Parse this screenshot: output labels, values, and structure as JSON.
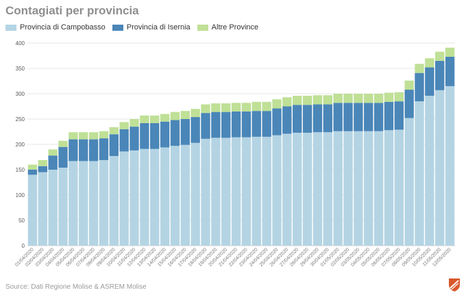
{
  "title": "Contagiati per provincia",
  "source": "Source: Dati Regione Molise & ASREM Molise",
  "logo_icon": "molise-shield-logo",
  "colors": {
    "campobasso": "#b4d4e4",
    "isernia": "#4a86b8",
    "altre": "#bfe096",
    "grid": "#e6e6e6",
    "axis": "#cccccc"
  },
  "chart_data": {
    "type": "bar",
    "stacked": true,
    "ylim": [
      0,
      400
    ],
    "yticks": [
      0,
      50,
      100,
      150,
      200,
      250,
      300,
      350,
      400
    ],
    "grid": true,
    "legend_position": "top-left",
    "categories": [
      "01/04/2020",
      "02/04/2020",
      "03/04/2020",
      "04/04/2020",
      "05/04/2020",
      "06/04/2020",
      "07/04/2020",
      "08/04/2020",
      "09/04/2020",
      "10/04/2020",
      "11/04/2020",
      "12/04/2020",
      "13/04/2020",
      "14/04/2020",
      "15/04/2020",
      "16/04/2020",
      "17/04/2020",
      "18/04/2020",
      "19/04/2020",
      "20/04/2020",
      "21/04/2020",
      "22/04/2020",
      "23/04/2020",
      "24/04/2020",
      "25/04/2020",
      "26/04/2020",
      "27/04/2020",
      "28/04/2020",
      "29/04/2020",
      "30/04/2020",
      "01/05/2020",
      "02/05/2020",
      "03/05/2020",
      "04/05/2020",
      "05/05/2020",
      "06/05/2020",
      "07/05/2020",
      "08/05/2020",
      "09/05/2020",
      "10/05/2020",
      "11/05/2020",
      "12/05/2020"
    ],
    "xtick_labels": [
      "01/04/2020",
      "02/04/2020",
      "03/04/2020",
      "04/04/2020",
      "05/04/2020",
      "06/04/2020",
      "07/04/2020",
      "08/04/2020",
      "09/04/2020",
      "10/04/2020",
      "11/04/2020",
      "12/04/2020",
      "13/04/2020",
      "14/04/2020",
      "15/04/2020",
      "16/04/2020",
      "17/04/2020",
      "18/04/2020",
      "19/04/2020",
      "20/04/2020",
      "21/04/2020",
      "22/04/2020",
      "23/04/2020",
      "24/04/2020",
      "25/04/2020",
      "26/04/2020",
      "27/04/2020",
      "28/04/2020",
      "29/04/2020",
      "30/04/2020",
      "01/05/2020",
      "02/05/2020",
      "03/05/2020",
      "04/05/2020",
      "05/05/2020",
      "06/05/2020",
      "07/05/2020",
      "08/05/2020",
      "09/05/2020",
      "10/05/2020",
      "11/05/2020",
      "12/05/2020"
    ],
    "series": [
      {
        "name": "Provincia di Campobasso",
        "color": "#b4d4e4",
        "values": [
          140,
          145,
          150,
          154,
          167,
          167,
          167,
          169,
          177,
          186,
          188,
          191,
          191,
          194,
          197,
          199,
          203,
          211,
          213,
          213,
          214,
          214,
          215,
          215,
          218,
          221,
          223,
          223,
          224,
          224,
          226,
          226,
          226,
          226,
          226,
          228,
          229,
          252,
          285,
          296,
          307,
          315
        ]
      },
      {
        "name": "Provincia di Isernia",
        "color": "#4a86b8",
        "values": [
          10,
          12,
          28,
          41,
          43,
          43,
          43,
          43,
          43,
          44,
          47,
          51,
          51,
          51,
          51,
          51,
          51,
          51,
          51,
          51,
          51,
          51,
          51,
          51,
          53,
          54,
          55,
          55,
          55,
          55,
          56,
          56,
          56,
          56,
          56,
          56,
          56,
          56,
          56,
          56,
          58,
          58
        ]
      },
      {
        "name": "Altre Province",
        "color": "#bfe096",
        "values": [
          10,
          12,
          12,
          12,
          14,
          14,
          14,
          14,
          14,
          14,
          15,
          15,
          15,
          15,
          16,
          16,
          16,
          17,
          17,
          17,
          17,
          17,
          18,
          18,
          18,
          18,
          18,
          18,
          18,
          18,
          18,
          18,
          18,
          18,
          18,
          18,
          18,
          18,
          18,
          18,
          18,
          18
        ]
      }
    ]
  }
}
